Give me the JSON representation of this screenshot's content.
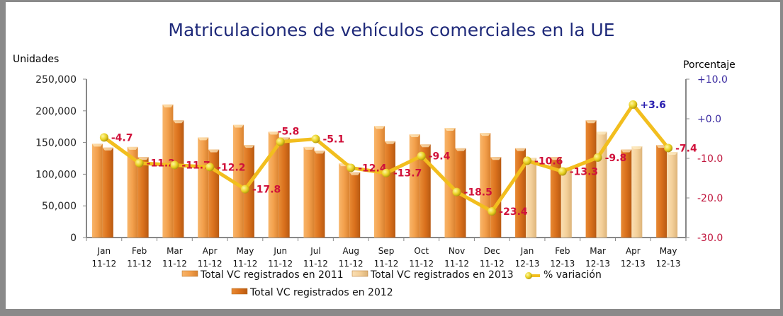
{
  "chart_data": {
    "type": "bar+line",
    "title": "Matriculaciones de vehículos comerciales en la UE",
    "ylabel_left": "Unidades",
    "ylabel_right": "Porcentaje",
    "ylim_left": [
      0,
      250000
    ],
    "ylim_right": [
      -30,
      10
    ],
    "yticks_left": [
      "0",
      "50,000",
      "100,000",
      "150,000",
      "200,000",
      "250,000"
    ],
    "yticks_right": [
      "-30.0",
      "-20.0",
      "-10.0",
      "+0.0",
      "+10.0"
    ],
    "categories": [
      [
        "Jan",
        "11-12"
      ],
      [
        "Feb",
        "11-12"
      ],
      [
        "Mar",
        "11-12"
      ],
      [
        "Apr",
        "11-12"
      ],
      [
        "May",
        "11-12"
      ],
      [
        "Jun",
        "11-12"
      ],
      [
        "Jul",
        "11-12"
      ],
      [
        "Aug",
        "11-12"
      ],
      [
        "Sep",
        "11-12"
      ],
      [
        "Oct",
        "11-12"
      ],
      [
        "Nov",
        "11-12"
      ],
      [
        "Dec",
        "11-12"
      ],
      [
        "Jan",
        "12-13"
      ],
      [
        "Feb",
        "12-13"
      ],
      [
        "Mar",
        "12-13"
      ],
      [
        "Apr",
        "12-13"
      ],
      [
        "May",
        "12-13"
      ]
    ],
    "series": [
      {
        "name": "Total VC registrados en 2011",
        "type": "bar",
        "color": "#F3A04C",
        "values": [
          148000,
          143000,
          210000,
          158000,
          178000,
          167000,
          143000,
          117000,
          176000,
          163000,
          173000,
          165000,
          null,
          null,
          null,
          null,
          null
        ]
      },
      {
        "name": "Total VC registrados en 2012",
        "type": "bar",
        "color": "#D9701C",
        "values": [
          142000,
          127000,
          185000,
          139000,
          146000,
          158000,
          137000,
          103000,
          152000,
          147000,
          141000,
          127000,
          141000,
          127000,
          185000,
          139000,
          146000
        ]
      },
      {
        "name": "Total VC registrados en 2013",
        "type": "bar",
        "color": "#F4D09A",
        "values": [
          null,
          null,
          null,
          null,
          null,
          null,
          null,
          null,
          null,
          null,
          null,
          null,
          126000,
          111000,
          167000,
          144000,
          135000
        ]
      },
      {
        "name": "% variación",
        "type": "line",
        "axis": "right",
        "color": "#F2BE1E",
        "values": [
          -4.7,
          -11.2,
          -11.7,
          -12.2,
          -17.8,
          -5.8,
          -5.1,
          -12.4,
          -13.7,
          -9.4,
          -18.5,
          -23.4,
          -10.6,
          -13.3,
          -9.8,
          3.6,
          -7.4
        ],
        "labels": [
          "-4.7",
          "-11.2",
          "-11.7",
          "-12.2",
          "-17.8",
          "-5.8",
          "-5.1",
          "-12.4",
          "-13.7",
          "-9.4",
          "-18.5",
          "-23.4",
          "-10.6",
          "-13.3",
          "-9.8",
          "+3.6",
          "-7.4"
        ]
      }
    ],
    "legend": [
      "Total VC registrados en 2011",
      "Total VC registrados en 2013",
      "% variación",
      "Total VC registrados en 2012"
    ],
    "legend_position": "bottom",
    "grid": false,
    "colors": {
      "title": "#1f2a7a",
      "negative_label": "#D0103A",
      "positive_label": "#2a1fb0",
      "right_axis_positive": "#3a2aa0",
      "right_axis_negative": "#c0143c"
    }
  }
}
